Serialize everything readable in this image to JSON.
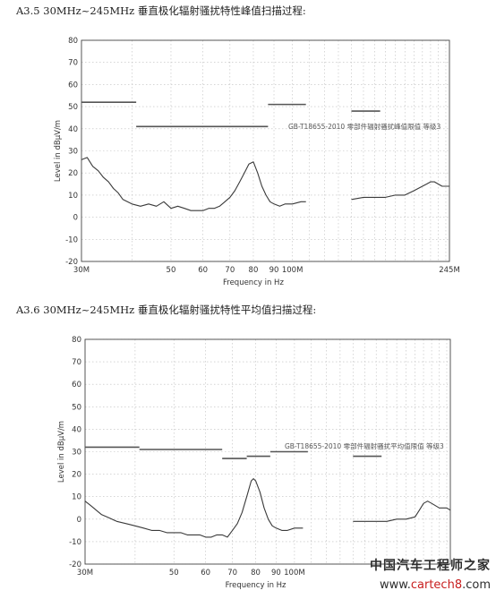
{
  "section1": {
    "heading": "A3.5 30MHz~245MHz 垂直极化辐射骚扰特性峰值扫描过程:"
  },
  "section2": {
    "heading": "A3.6 30MHz~245MHz 垂直极化辐射骚扰特性平均值扫描过程:"
  },
  "watermark": {
    "line1": "中国汽车工程师之家",
    "line2_prefix": "www.",
    "line2_accent": "cartech8",
    "line2_suffix": ".com"
  },
  "chart_data": [
    {
      "type": "line",
      "title": "A3.5 30MHz~245MHz 垂直极化辐射骚扰特性峰值扫描过程:",
      "xlabel": "Frequency in Hz",
      "ylabel": "Level in dBμV/m",
      "xscale": "log",
      "xlim": [
        30,
        245
      ],
      "ylim": [
        -20,
        80
      ],
      "yticks": [
        "-20",
        "-10",
        "0",
        "10",
        "20",
        "30",
        "40",
        "50",
        "60",
        "70",
        "80"
      ],
      "xticks": [
        {
          "v": 30,
          "label": "30M"
        },
        {
          "v": 50,
          "label": "50"
        },
        {
          "v": 60,
          "label": "60"
        },
        {
          "v": 70,
          "label": "70"
        },
        {
          "v": 80,
          "label": "80"
        },
        {
          "v": 90,
          "label": "90"
        },
        {
          "v": 100,
          "label": "100M"
        },
        {
          "v": 245,
          "label": "245M"
        }
      ],
      "limit_label": "GB-T18655-2010 零部件辐射骚扰峰值限值 等级3",
      "limit_segments": [
        {
          "x": [
            30,
            41
          ],
          "y": 52
        },
        {
          "x": [
            41,
            87
          ],
          "y": 41
        },
        {
          "x": [
            87,
            108
          ],
          "y": 51
        },
        {
          "x": [
            140,
            165
          ],
          "y": 48
        }
      ],
      "series": [
        {
          "x": [
            30,
            31,
            32,
            33,
            34,
            35,
            36,
            37,
            38,
            40,
            42,
            44,
            46,
            48,
            50,
            52,
            54,
            56,
            58,
            60,
            62,
            64,
            66,
            68,
            70,
            72,
            74,
            76,
            78,
            80,
            82,
            84,
            86,
            88,
            90,
            93,
            96,
            100,
            105,
            108
          ],
          "y": [
            26,
            27,
            23,
            21,
            18,
            16,
            13,
            11,
            8,
            6,
            5,
            6,
            5,
            7,
            4,
            5,
            4,
            3,
            3,
            3,
            4,
            4,
            5,
            7,
            9,
            12,
            16,
            20,
            24,
            25,
            20,
            14,
            10,
            7,
            6,
            5,
            6,
            6,
            7,
            7
          ]
        },
        {
          "x": [
            140,
            150,
            160,
            170,
            180,
            190,
            200,
            210,
            215,
            220,
            225,
            230,
            235,
            240,
            245
          ],
          "y": [
            8,
            9,
            9,
            9,
            10,
            10,
            12,
            14,
            15,
            16,
            16,
            15,
            14,
            14,
            14
          ]
        }
      ]
    },
    {
      "type": "line",
      "title": "A3.6 30MHz~245MHz 垂直极化辐射骚扰特性平均值扫描过程:",
      "xlabel": "Frequency in Hz",
      "ylabel": "Level in dBμV/m",
      "xscale": "log",
      "xlim": [
        30,
        245
      ],
      "ylim": [
        -20,
        80
      ],
      "yticks": [
        "-20",
        "-10",
        "0",
        "10",
        "20",
        "30",
        "40",
        "50",
        "60",
        "70",
        "80"
      ],
      "xticks": [
        {
          "v": 30,
          "label": "30M"
        },
        {
          "v": 50,
          "label": "50"
        },
        {
          "v": 60,
          "label": "60"
        },
        {
          "v": 70,
          "label": "70"
        },
        {
          "v": 80,
          "label": "80"
        },
        {
          "v": 90,
          "label": "90"
        },
        {
          "v": 100,
          "label": "100M"
        }
      ],
      "limit_label": "GB-T18655-2010 零部件辐射骚扰平均值限值 等级3",
      "limit_segments": [
        {
          "x": [
            30,
            41
          ],
          "y": 32
        },
        {
          "x": [
            41,
            66
          ],
          "y": 31
        },
        {
          "x": [
            66,
            76
          ],
          "y": 27
        },
        {
          "x": [
            76,
            87
          ],
          "y": 28
        },
        {
          "x": [
            87,
            108
          ],
          "y": 30
        },
        {
          "x": [
            140,
            165
          ],
          "y": 28
        }
      ],
      "series": [
        {
          "x": [
            30,
            31,
            32,
            33,
            34,
            35,
            36,
            38,
            40,
            42,
            44,
            46,
            48,
            50,
            52,
            54,
            56,
            58,
            60,
            62,
            64,
            66,
            68,
            70,
            72,
            74,
            76,
            78,
            79,
            80,
            82,
            84,
            86,
            88,
            90,
            93,
            96,
            100,
            105
          ],
          "y": [
            8,
            6,
            4,
            2,
            1,
            0,
            -1,
            -2,
            -3,
            -4,
            -5,
            -5,
            -6,
            -6,
            -6,
            -7,
            -7,
            -7,
            -8,
            -8,
            -7,
            -7,
            -8,
            -5,
            -2,
            3,
            10,
            17,
            18,
            17,
            12,
            5,
            0,
            -3,
            -4,
            -5,
            -5,
            -4,
            -4
          ]
        },
        {
          "x": [
            140,
            150,
            160,
            170,
            180,
            190,
            200,
            205,
            210,
            215,
            220,
            230,
            240,
            245
          ],
          "y": [
            -1,
            -1,
            -1,
            -1,
            0,
            0,
            1,
            4,
            7,
            8,
            7,
            5,
            5,
            4
          ]
        }
      ]
    }
  ]
}
